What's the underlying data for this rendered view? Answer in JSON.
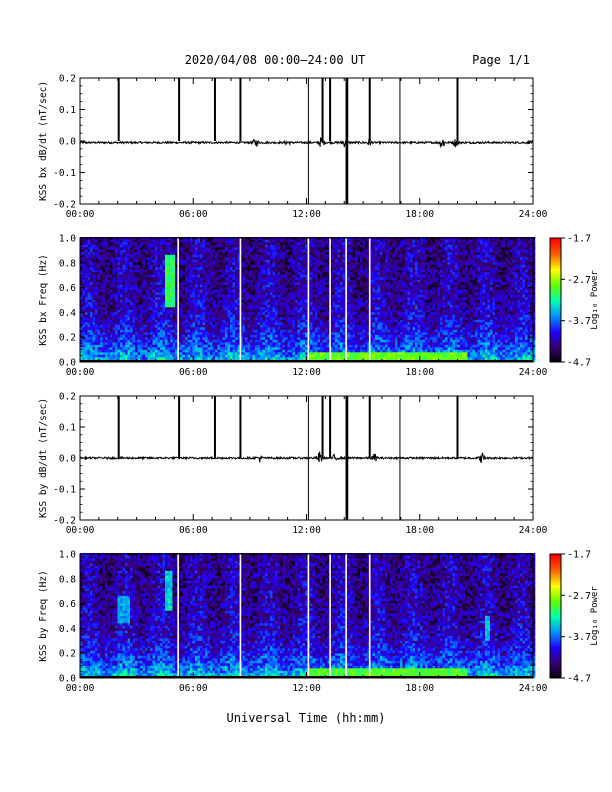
{
  "header": {
    "title": "2020/04/08  00:00–24:00 UT",
    "page": "Page 1/1"
  },
  "footer": {
    "xlabel": "Universal Time (hh:mm)"
  },
  "colors": {
    "background": "#ffffff",
    "axis": "#000000",
    "trace": "#000000",
    "spikes": "#ffffff"
  },
  "colorbar": {
    "label": "Log₁₀ Power",
    "min": -4.7,
    "max": -1.7,
    "ticks": [
      "-1.7",
      "-2.7",
      "-3.7",
      "-4.7"
    ],
    "colormap": [
      "#000000",
      "#3a0070",
      "#2000ff",
      "#0090ff",
      "#00ffb0",
      "#60ff00",
      "#ffff00",
      "#ff6000",
      "#ff0000"
    ]
  },
  "chart_data": [
    {
      "type": "line",
      "ylabel": "KSS bx dB/dt (nT/sec)",
      "xlim": [
        0,
        24
      ],
      "ylim": [
        -0.2,
        0.2
      ],
      "xticks": [
        "00:00",
        "06:00",
        "12:00",
        "18:00",
        "24:00"
      ],
      "yticks": [
        "-0.2",
        "-0.1",
        "0.0",
        "0.1",
        "0.2"
      ],
      "baseline": -0.005,
      "noise": 0.003,
      "bursts": [
        {
          "t": 9.3,
          "amp": 0.012
        },
        {
          "t": 11.0,
          "amp": 0.008
        },
        {
          "t": 12.8,
          "amp": 0.018
        },
        {
          "t": 14.0,
          "amp": 0.012
        },
        {
          "t": 15.3,
          "amp": 0.01
        },
        {
          "t": 19.2,
          "amp": 0.022
        },
        {
          "t": 19.9,
          "amp": 0.012
        }
      ],
      "spikes": [
        {
          "t": 2.05,
          "y0": 0.0,
          "y1": 0.21
        },
        {
          "t": 5.25,
          "y0": 0.0,
          "y1": 0.21
        },
        {
          "t": 7.15,
          "y0": 0.0,
          "y1": 0.21
        },
        {
          "t": 8.5,
          "y0": 0.0,
          "y1": 0.21
        },
        {
          "t": 12.1,
          "y0": -0.21,
          "y1": 0.21
        },
        {
          "t": 12.85,
          "y0": 0.0,
          "y1": 0.21
        },
        {
          "t": 13.25,
          "y0": 0.0,
          "y1": 0.21
        },
        {
          "t": 14.1,
          "y0": -0.21,
          "y1": 0.21
        },
        {
          "t": 14.18,
          "y0": -0.21,
          "y1": 0.21
        },
        {
          "t": 15.35,
          "y0": 0.0,
          "y1": 0.21
        },
        {
          "t": 16.95,
          "y0": -0.21,
          "y1": 0.21
        },
        {
          "t": 20.0,
          "y0": 0.0,
          "y1": 0.21
        }
      ]
    },
    {
      "type": "heatmap",
      "ylabel": "KSS bx Freq (Hz)",
      "xlim": [
        0,
        24
      ],
      "ylim": [
        0.0,
        1.0
      ],
      "xticks": [
        "00:00",
        "06:00",
        "12:00",
        "18:00",
        "24:00"
      ],
      "yticks": [
        "0.0",
        "0.2",
        "0.4",
        "0.6",
        "0.8",
        "1.0"
      ],
      "gaps": [
        5.2,
        8.5,
        12.1,
        13.25,
        14.1,
        15.35
      ],
      "features": [
        {
          "t0": 4.5,
          "t1": 5.0,
          "f0": 0.45,
          "f1": 0.85,
          "level": 0.55
        },
        {
          "t0": 12.0,
          "t1": 20.5,
          "f0": 0.0,
          "f1": 0.07,
          "level": 0.62
        }
      ]
    },
    {
      "type": "line",
      "ylabel": "KSS by dB/dt (nT/sec)",
      "xlim": [
        0,
        24
      ],
      "ylim": [
        -0.2,
        0.2
      ],
      "xticks": [
        "00:00",
        "06:00",
        "12:00",
        "18:00",
        "24:00"
      ],
      "yticks": [
        "-0.2",
        "-0.1",
        "0.0",
        "0.1",
        "0.2"
      ],
      "baseline": 0.0,
      "noise": 0.003,
      "bursts": [
        {
          "t": 9.5,
          "amp": 0.012
        },
        {
          "t": 12.7,
          "amp": 0.02
        },
        {
          "t": 13.5,
          "amp": 0.01
        },
        {
          "t": 15.6,
          "amp": 0.012
        },
        {
          "t": 21.3,
          "amp": 0.016
        }
      ],
      "spikes": [
        {
          "t": 2.05,
          "y0": 0.0,
          "y1": 0.21
        },
        {
          "t": 5.25,
          "y0": 0.0,
          "y1": 0.21
        },
        {
          "t": 7.15,
          "y0": 0.0,
          "y1": 0.21
        },
        {
          "t": 8.5,
          "y0": 0.0,
          "y1": 0.21
        },
        {
          "t": 12.1,
          "y0": -0.21,
          "y1": 0.21
        },
        {
          "t": 12.85,
          "y0": 0.0,
          "y1": 0.21
        },
        {
          "t": 13.25,
          "y0": 0.0,
          "y1": 0.21
        },
        {
          "t": 14.1,
          "y0": -0.21,
          "y1": 0.21
        },
        {
          "t": 14.18,
          "y0": -0.21,
          "y1": 0.21
        },
        {
          "t": 15.35,
          "y0": 0.0,
          "y1": 0.21
        },
        {
          "t": 16.95,
          "y0": -0.21,
          "y1": 0.21
        },
        {
          "t": 20.0,
          "y0": 0.0,
          "y1": 0.21
        }
      ]
    },
    {
      "type": "heatmap",
      "ylabel": "KSS by Freq (Hz)",
      "xlim": [
        0,
        24
      ],
      "ylim": [
        0.0,
        1.0
      ],
      "xticks": [
        "00:00",
        "06:00",
        "12:00",
        "18:00",
        "24:00"
      ],
      "yticks": [
        "0.0",
        "0.2",
        "0.4",
        "0.6",
        "0.8",
        "1.0"
      ],
      "gaps": [
        5.2,
        8.5,
        12.1,
        13.25,
        14.1,
        15.35
      ],
      "features": [
        {
          "t0": 2.0,
          "t1": 2.6,
          "f0": 0.45,
          "f1": 0.65,
          "level": 0.4
        },
        {
          "t0": 4.5,
          "t1": 4.9,
          "f0": 0.55,
          "f1": 0.85,
          "level": 0.45
        },
        {
          "t0": 21.4,
          "t1": 21.6,
          "f0": 0.3,
          "f1": 0.5,
          "level": 0.42
        },
        {
          "t0": 12.0,
          "t1": 20.5,
          "f0": 0.0,
          "f1": 0.08,
          "level": 0.6
        }
      ]
    }
  ]
}
